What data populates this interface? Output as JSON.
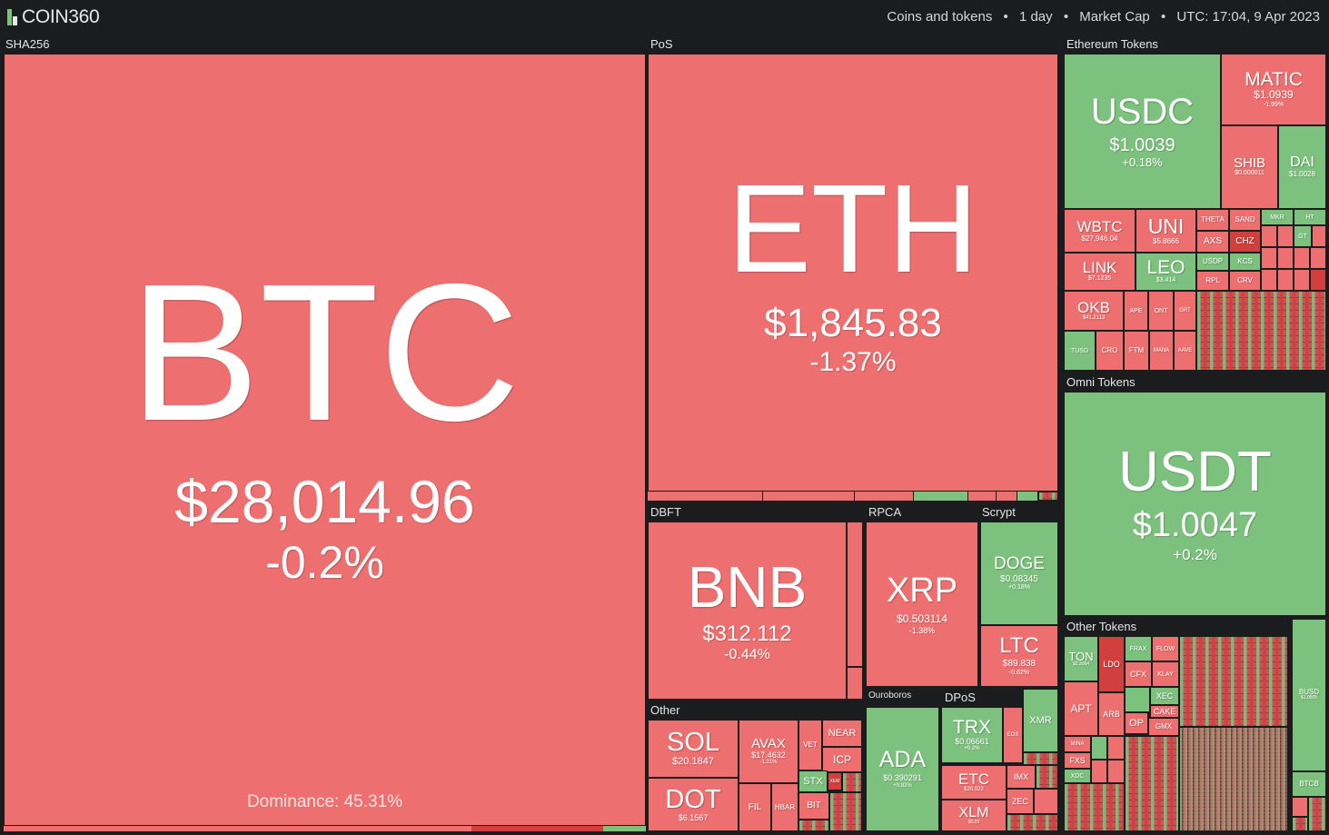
{
  "header": {
    "brand": "COIN360",
    "filter": "Coins and tokens",
    "period": "1 day",
    "metric": "Market Cap",
    "time": "UTC: 17:04, 9 Apr 2023",
    "separator": "•"
  },
  "groups": {
    "sha256": "SHA256",
    "pos": "PoS",
    "eth_tokens": "Ethereum Tokens",
    "omni": "Omni Tokens",
    "dbft": "DBFT",
    "rpca": "RPCA",
    "scrypt": "Scrypt",
    "other": "Other",
    "ouroboros": "Ouroboros",
    "dpos": "DPoS",
    "other_tokens": "Other Tokens"
  },
  "coins": {
    "btc": {
      "symbol": "BTC",
      "price": "$28,014.96",
      "change": "-0.2%",
      "dominance": "Dominance: 45.31%"
    },
    "eth": {
      "symbol": "ETH",
      "price": "$1,845.83",
      "change": "-1.37%"
    },
    "bnb": {
      "symbol": "BNB",
      "price": "$312.112",
      "change": "-0.44%"
    },
    "xrp": {
      "symbol": "XRP",
      "price": "$0.503114",
      "change": "-1.38%"
    },
    "doge": {
      "symbol": "DOGE",
      "price": "$0.08345",
      "change": "+0.18%"
    },
    "ltc": {
      "symbol": "LTC",
      "price": "$89.838",
      "change": "-0.62%"
    },
    "sol": {
      "symbol": "SOL",
      "price": "$20.1847"
    },
    "dot": {
      "symbol": "DOT",
      "price": "$6.1567"
    },
    "avax": {
      "symbol": "AVAX",
      "price": "$17.4632",
      "change": "-1.21%"
    },
    "vet": {
      "symbol": "VET"
    },
    "near": {
      "symbol": "NEAR"
    },
    "icp": {
      "symbol": "ICP"
    },
    "stx": {
      "symbol": "STX"
    },
    "xem": {
      "symbol": "XEM"
    },
    "fil": {
      "symbol": "FIL"
    },
    "hbar": {
      "symbol": "HBAR"
    },
    "bit": {
      "symbol": "BIT"
    },
    "ada": {
      "symbol": "ADA",
      "price": "$0.390291",
      "change": "+0.82%"
    },
    "trx": {
      "symbol": "TRX",
      "price": "$0.06661",
      "change": "+0.2%"
    },
    "eos": {
      "symbol": "EOS"
    },
    "xmr": {
      "symbol": "XMR"
    },
    "etc": {
      "symbol": "ETC",
      "price": "$20.022"
    },
    "imx": {
      "symbol": "IMX"
    },
    "xlm": {
      "symbol": "XLM",
      "price": "$0.09"
    },
    "zec": {
      "symbol": "ZEC"
    },
    "usdc": {
      "symbol": "USDC",
      "price": "$1.0039",
      "change": "+0.18%"
    },
    "matic": {
      "symbol": "MATIC",
      "price": "$1.0939",
      "change": "-1.99%"
    },
    "shib": {
      "symbol": "SHIB",
      "price": "$0.000011"
    },
    "dai": {
      "symbol": "DAI",
      "price": "$1.0028"
    },
    "wbtc": {
      "symbol": "WBTC",
      "price": "$27,946.04"
    },
    "uni": {
      "symbol": "UNI",
      "price": "$5.8666"
    },
    "link": {
      "symbol": "LINK",
      "price": "$7.1235"
    },
    "leo": {
      "symbol": "LEO",
      "price": "$3.414"
    },
    "okb": {
      "symbol": "OKB",
      "price": "$41.2113"
    },
    "theta": {
      "symbol": "THETA"
    },
    "sand": {
      "symbol": "SAND"
    },
    "axs": {
      "symbol": "AXS"
    },
    "chz": {
      "symbol": "CHZ"
    },
    "usdp": {
      "symbol": "USDP"
    },
    "kcs": {
      "symbol": "KCS"
    },
    "rpl": {
      "symbol": "RPL"
    },
    "crv": {
      "symbol": "CRV"
    },
    "mkr": {
      "symbol": "MKR"
    },
    "ht": {
      "symbol": "HT"
    },
    "gt": {
      "symbol": "GT"
    },
    "ape": {
      "symbol": "APE"
    },
    "ont": {
      "symbol": "ONT"
    },
    "grt": {
      "symbol": "GRT"
    },
    "tusd": {
      "symbol": "TUSD"
    },
    "cro": {
      "symbol": "CRO"
    },
    "ftm": {
      "symbol": "FTM"
    },
    "mana": {
      "symbol": "MANA"
    },
    "aave": {
      "symbol": "AAVE"
    },
    "usdt": {
      "symbol": "USDT",
      "price": "$1.0047",
      "change": "+0.2%"
    },
    "ton": {
      "symbol": "TON",
      "price": "$2.2064"
    },
    "ldo": {
      "symbol": "LDO"
    },
    "frax": {
      "symbol": "FRAX"
    },
    "flow": {
      "symbol": "FLOW"
    },
    "cfx": {
      "symbol": "CFX"
    },
    "klay": {
      "symbol": "KLAY"
    },
    "xec": {
      "symbol": "XEC"
    },
    "cake": {
      "symbol": "CAKE"
    },
    "apt": {
      "symbol": "APT"
    },
    "arb": {
      "symbol": "ARB"
    },
    "op": {
      "symbol": "OP"
    },
    "gmx": {
      "symbol": "GMX"
    },
    "mina": {
      "symbol": "MINA"
    },
    "fxs": {
      "symbol": "FXS"
    },
    "xdc": {
      "symbol": "XDC"
    },
    "busd": {
      "symbol": "BUSD",
      "price": "$1.0005"
    },
    "btcb": {
      "symbol": "BTCB"
    }
  },
  "colors": {
    "down": "#ee6f6f",
    "down_strong": "#d23f3f",
    "up": "#7cc17d",
    "up_strong": "#3c9a45",
    "background": "#1b1c1d"
  }
}
